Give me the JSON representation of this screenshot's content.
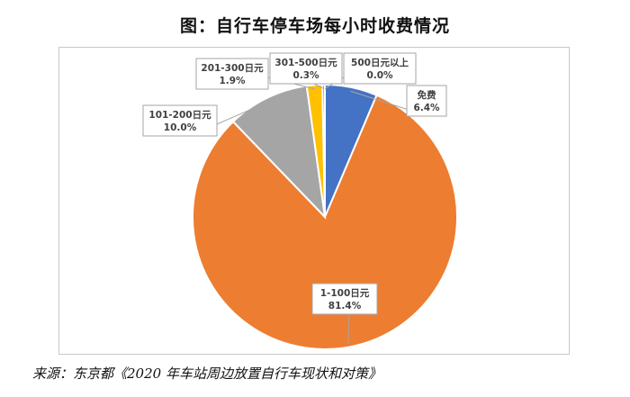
{
  "title": "图：自行车停车场每小时收费情况",
  "source": "来源：东京都《2020 年车站周边放置自行车现状和对策》",
  "chart_data": {
    "type": "pie",
    "title": "",
    "series": [
      {
        "slices": [
          {
            "name": "免费",
            "value": 6.4,
            "label": "6.4%",
            "color": "#4472C4"
          },
          {
            "name": "1-100日元",
            "value": 81.4,
            "label": "81.4%",
            "color": "#ED7D31"
          },
          {
            "name": "101-200日元",
            "value": 10.0,
            "label": "10.0%",
            "color": "#A5A5A5"
          },
          {
            "name": "201-300日元",
            "value": 1.9,
            "label": "1.9%",
            "color": "#FFC000"
          },
          {
            "name": "301-500日元",
            "value": 0.3,
            "label": "0.3%",
            "color": "#5B9BD5"
          },
          {
            "name": "500日元以上",
            "value": 0.0,
            "label": "0.0%",
            "color": "#70AD47"
          }
        ]
      }
    ],
    "legend": "none",
    "data_labels": "callouts"
  }
}
